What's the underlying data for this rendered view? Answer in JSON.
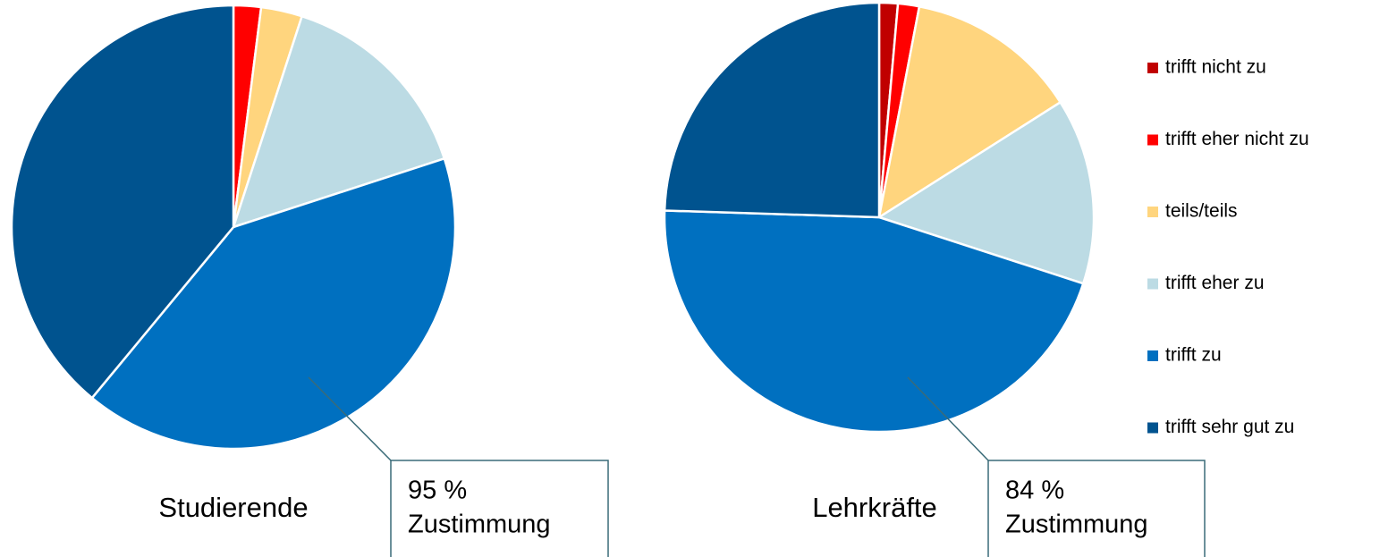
{
  "legend": {
    "categories": [
      "trifft nicht zu",
      "trifft eher nicht zu",
      "teils/teils",
      "trifft eher zu",
      "trifft zu",
      "trifft sehr gut zu"
    ],
    "colors": [
      "#c00000",
      "#ff0000",
      "#ffd57e",
      "#bcdbe4",
      "#0070c0",
      "#00538f"
    ]
  },
  "chart_data": [
    {
      "type": "pie",
      "title": "Studierende",
      "values": [
        0,
        2,
        3,
        15,
        41,
        39
      ],
      "annotation": [
        "95 %",
        "Zustimmung"
      ]
    },
    {
      "type": "pie",
      "title": "Lehrkräfte",
      "values": [
        1.4,
        1.6,
        13,
        14,
        45.5,
        24.5
      ],
      "annotation": [
        "84 %",
        "Zustimmung"
      ]
    }
  ]
}
